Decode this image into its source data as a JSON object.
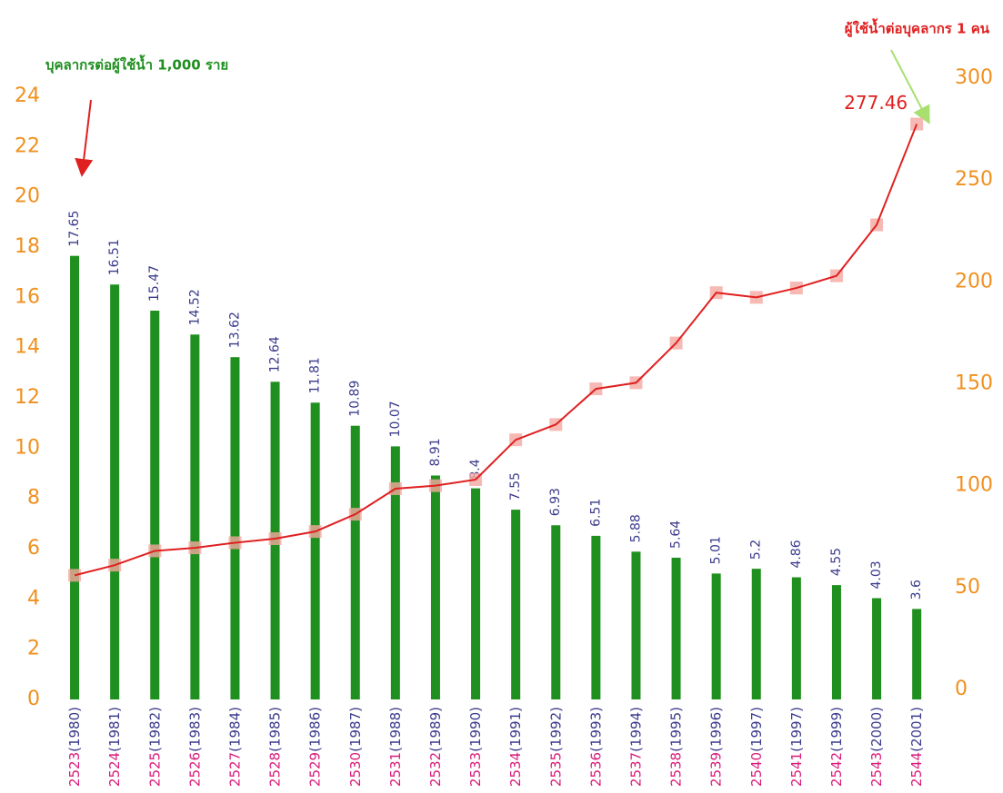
{
  "chart_data": {
    "type": "bar_line",
    "annotations": [
      "บุคลากรต่อผู้ใช้น้ำ 1,000 ราย",
      "ผู้ใช้น้ำต่อบุคลากร 1 คน"
    ],
    "categories": [
      "2523(1980)",
      "2524(1981)",
      "2525(1982)",
      "2526(1983)",
      "2527(1984)",
      "2528(1985)",
      "2529(1986)",
      "2530(1987)",
      "2531(1988)",
      "2532(1989)",
      "2533(1990)",
      "2534(1991)",
      "2535(1992)",
      "2536(1993)",
      "2537(1994)",
      "2538(1995)",
      "2539(1996)",
      "2540(1997)",
      "2541(1997)",
      "2542(1999)",
      "2543(2000)",
      "2544(2001)"
    ],
    "series": [
      {
        "type": "bar",
        "color": "#1f8f1f",
        "values": [
          17.65,
          16.51,
          15.47,
          14.52,
          13.62,
          12.64,
          11.81,
          10.89,
          10.07,
          8.91,
          8.4,
          7.55,
          6.93,
          6.51,
          5.88,
          5.64,
          5.01,
          5.2,
          4.86,
          4.55,
          4.03,
          3.6
        ]
      },
      {
        "type": "line",
        "axis": "y2",
        "color": "#e02020",
        "marker_color": "#f4a8a0",
        "values": [
          56,
          61,
          68,
          69.5,
          72,
          74,
          77.5,
          86,
          98.5,
          100,
          103,
          122.5,
          130,
          147.5,
          150.5,
          170,
          194.7,
          192.4,
          197,
          203,
          228,
          277.46
        ]
      }
    ],
    "ylim": [
      0,
      24
    ],
    "yticks": [
      0,
      2,
      4,
      6,
      8,
      10,
      12,
      14,
      16,
      18,
      20,
      22,
      24
    ],
    "y2lim": [
      0,
      300
    ],
    "y2ticks": [
      0,
      50,
      100,
      150,
      200,
      250,
      300
    ]
  }
}
